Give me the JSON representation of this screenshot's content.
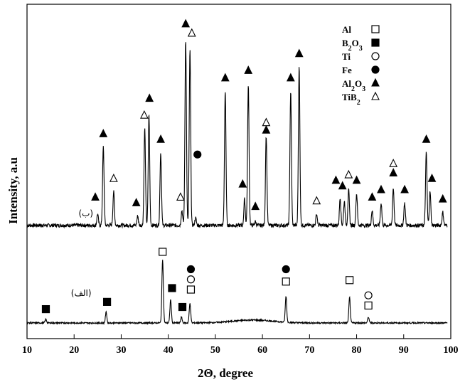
{
  "chart_data": {
    "type": "line",
    "xlabel": "2Θ, degree",
    "ylabel": "Intensity, a.u",
    "xlim": [
      10,
      100
    ],
    "x_ticks": [
      10,
      20,
      30,
      40,
      50,
      60,
      70,
      80,
      90,
      100
    ],
    "grid": false,
    "legend_position": "top-right",
    "legend": [
      {
        "label_main": "Al",
        "label_sub": "",
        "label_tail": "",
        "marker": "open-square"
      },
      {
        "label_main": "B",
        "label_sub": "2",
        "label_tail": "O",
        "label_sub2": "3",
        "marker": "filled-square"
      },
      {
        "label_main": "Ti",
        "label_sub": "",
        "label_tail": "",
        "marker": "open-circle"
      },
      {
        "label_main": "Fe",
        "label_sub": "",
        "label_tail": "",
        "marker": "filled-circle"
      },
      {
        "label_main": "Al",
        "label_sub": "2",
        "label_tail": "O",
        "label_sub2": "3",
        "marker": "filled-triangle"
      },
      {
        "label_main": "TiB",
        "label_sub": "2",
        "label_tail": "",
        "marker": "open-triangle"
      }
    ],
    "series": [
      {
        "name": "ب",
        "baseline": 0.02,
        "peaks": [
          {
            "x": 25.0,
            "h": 0.06
          },
          {
            "x": 26.2,
            "h": 0.42
          },
          {
            "x": 28.4,
            "h": 0.18
          },
          {
            "x": 33.5,
            "h": 0.05
          },
          {
            "x": 35.0,
            "h": 0.52
          },
          {
            "x": 35.9,
            "h": 0.6
          },
          {
            "x": 38.4,
            "h": 0.39
          },
          {
            "x": 42.9,
            "h": 0.08
          },
          {
            "x": 43.7,
            "h": 1.0
          },
          {
            "x": 44.6,
            "h": 0.94
          },
          {
            "x": 45.8,
            "h": 0.04
          },
          {
            "x": 52.1,
            "h": 0.72
          },
          {
            "x": 56.2,
            "h": 0.14
          },
          {
            "x": 57.0,
            "h": 0.75
          },
          {
            "x": 58.5,
            "h": 0.02
          },
          {
            "x": 60.8,
            "h": 0.48
          },
          {
            "x": 66.0,
            "h": 0.72
          },
          {
            "x": 67.8,
            "h": 0.85
          },
          {
            "x": 71.5,
            "h": 0.06
          },
          {
            "x": 76.5,
            "h": 0.15
          },
          {
            "x": 77.4,
            "h": 0.13
          },
          {
            "x": 78.3,
            "h": 0.19
          },
          {
            "x": 80.0,
            "h": 0.17
          },
          {
            "x": 83.3,
            "h": 0.08
          },
          {
            "x": 85.2,
            "h": 0.12
          },
          {
            "x": 87.8,
            "h": 0.2
          },
          {
            "x": 90.2,
            "h": 0.12
          },
          {
            "x": 94.8,
            "h": 0.39
          },
          {
            "x": 95.6,
            "h": 0.18
          },
          {
            "x": 98.3,
            "h": 0.07
          }
        ],
        "markers": [
          {
            "x": 24.5,
            "y": 0.17,
            "m": "filled-triangle"
          },
          {
            "x": 26.2,
            "y": 0.51,
            "m": "filled-triangle"
          },
          {
            "x": 28.4,
            "y": 0.27,
            "m": "open-triangle"
          },
          {
            "x": 33.2,
            "y": 0.14,
            "m": "filled-triangle"
          },
          {
            "x": 34.9,
            "y": 0.61,
            "m": "open-triangle"
          },
          {
            "x": 36.0,
            "y": 0.7,
            "m": "filled-triangle"
          },
          {
            "x": 38.4,
            "y": 0.48,
            "m": "filled-triangle"
          },
          {
            "x": 42.6,
            "y": 0.17,
            "m": "open-triangle"
          },
          {
            "x": 43.7,
            "y": 1.1,
            "m": "filled-triangle"
          },
          {
            "x": 45.0,
            "y": 1.05,
            "m": "open-triangle"
          },
          {
            "x": 46.2,
            "y": 0.4,
            "m": "filled-circle"
          },
          {
            "x": 52.1,
            "y": 0.81,
            "m": "filled-triangle"
          },
          {
            "x": 55.8,
            "y": 0.24,
            "m": "filled-triangle"
          },
          {
            "x": 57.0,
            "y": 0.85,
            "m": "filled-triangle"
          },
          {
            "x": 58.5,
            "y": 0.12,
            "m": "filled-triangle"
          },
          {
            "x": 60.8,
            "y": 0.57,
            "m": "open-triangle"
          },
          {
            "x": 60.8,
            "y": 0.53,
            "m": "filled-triangle"
          },
          {
            "x": 66.0,
            "y": 0.81,
            "m": "filled-triangle"
          },
          {
            "x": 67.8,
            "y": 0.94,
            "m": "filled-triangle"
          },
          {
            "x": 71.5,
            "y": 0.15,
            "m": "open-triangle"
          },
          {
            "x": 75.6,
            "y": 0.26,
            "m": "filled-triangle"
          },
          {
            "x": 77.0,
            "y": 0.23,
            "m": "filled-triangle"
          },
          {
            "x": 78.3,
            "y": 0.29,
            "m": "open-triangle"
          },
          {
            "x": 80.0,
            "y": 0.26,
            "m": "filled-triangle"
          },
          {
            "x": 83.3,
            "y": 0.17,
            "m": "filled-triangle"
          },
          {
            "x": 85.2,
            "y": 0.21,
            "m": "filled-triangle"
          },
          {
            "x": 87.8,
            "y": 0.35,
            "m": "open-triangle"
          },
          {
            "x": 87.8,
            "y": 0.3,
            "m": "filled-triangle"
          },
          {
            "x": 90.2,
            "y": 0.21,
            "m": "filled-triangle"
          },
          {
            "x": 94.8,
            "y": 0.48,
            "m": "filled-triangle"
          },
          {
            "x": 96.0,
            "y": 0.27,
            "m": "filled-triangle"
          },
          {
            "x": 98.3,
            "y": 0.16,
            "m": "filled-triangle"
          }
        ]
      },
      {
        "name": "الف",
        "baseline": 0.02,
        "peaks": [
          {
            "x": 14.0,
            "h": 0.05
          },
          {
            "x": 26.8,
            "h": 0.15
          },
          {
            "x": 38.8,
            "h": 0.88
          },
          {
            "x": 40.5,
            "h": 0.32
          },
          {
            "x": 42.8,
            "h": 0.08
          },
          {
            "x": 44.6,
            "h": 0.27
          },
          {
            "x": 65.0,
            "h": 0.36
          },
          {
            "x": 78.5,
            "h": 0.35
          },
          {
            "x": 82.5,
            "h": 0.08
          }
        ],
        "markers": [
          {
            "x": 14.0,
            "y": 0.21,
            "m": "filled-square"
          },
          {
            "x": 27.0,
            "y": 0.31,
            "m": "filled-square"
          },
          {
            "x": 38.8,
            "y": 1.0,
            "m": "open-square"
          },
          {
            "x": 40.8,
            "y": 0.5,
            "m": "filled-square"
          },
          {
            "x": 43.0,
            "y": 0.24,
            "m": "filled-square"
          },
          {
            "x": 44.8,
            "y": 0.76,
            "m": "filled-circle"
          },
          {
            "x": 44.8,
            "y": 0.62,
            "m": "open-circle"
          },
          {
            "x": 44.8,
            "y": 0.48,
            "m": "open-square"
          },
          {
            "x": 65.0,
            "y": 0.76,
            "m": "filled-circle"
          },
          {
            "x": 65.0,
            "y": 0.59,
            "m": "open-square"
          },
          {
            "x": 78.5,
            "y": 0.61,
            "m": "open-square"
          },
          {
            "x": 82.5,
            "y": 0.4,
            "m": "open-circle"
          },
          {
            "x": 82.5,
            "y": 0.26,
            "m": "open-square"
          }
        ]
      }
    ]
  }
}
